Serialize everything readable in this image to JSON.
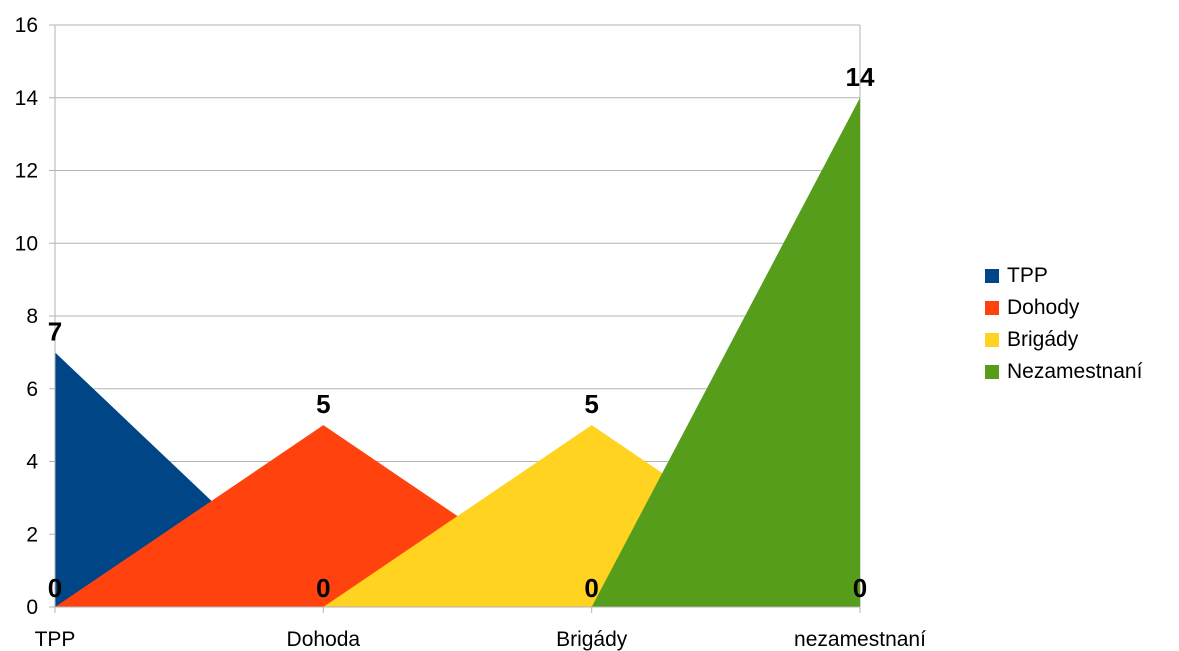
{
  "chart_data": {
    "type": "area",
    "title": "",
    "xlabel": "",
    "ylabel": "",
    "categories": [
      "TPP",
      "Dohoda",
      "Brigády",
      "nezamestnaní"
    ],
    "ylim": [
      0,
      16
    ],
    "yticks": [
      0,
      2,
      4,
      6,
      8,
      10,
      12,
      14,
      16
    ],
    "grid": "horizontal",
    "legend_position": "right",
    "series": [
      {
        "name": "TPP",
        "color": "#004586",
        "x": [
          "TPP",
          "Dohoda"
        ],
        "values": [
          7,
          0
        ]
      },
      {
        "name": "Dohody",
        "color": "#ff420e",
        "x": [
          "TPP",
          "Dohoda",
          "Brigády"
        ],
        "values": [
          0,
          5,
          0
        ]
      },
      {
        "name": "Brigády",
        "color": "#ffd320",
        "x": [
          "Dohoda",
          "Brigády",
          "nezamestnaní"
        ],
        "values": [
          0,
          5,
          0
        ]
      },
      {
        "name": "Nezamestnaní",
        "color": "#579d1c",
        "x": [
          "Brigády",
          "nezamestnaní"
        ],
        "values": [
          0,
          14
        ]
      }
    ],
    "data_labels": [
      {
        "category": "TPP",
        "value": 7,
        "text": "7"
      },
      {
        "category": "TPP",
        "value": 0,
        "text": "0"
      },
      {
        "category": "Dohoda",
        "value": 5,
        "text": "5"
      },
      {
        "category": "Dohoda",
        "value": 0,
        "text": "0"
      },
      {
        "category": "Brigády",
        "value": 5,
        "text": "5"
      },
      {
        "category": "Brigády",
        "value": 0,
        "text": "0"
      },
      {
        "category": "nezamestnaní",
        "value": 14,
        "text": "14"
      },
      {
        "category": "nezamestnaní",
        "value": 0,
        "text": "0"
      }
    ]
  },
  "legend": {
    "items": [
      {
        "label": "TPP",
        "color": "#004586"
      },
      {
        "label": "Dohody",
        "color": "#ff420e"
      },
      {
        "label": "Brigády",
        "color": "#ffd320"
      },
      {
        "label": "Nezamestnaní",
        "color": "#579d1c"
      }
    ]
  }
}
